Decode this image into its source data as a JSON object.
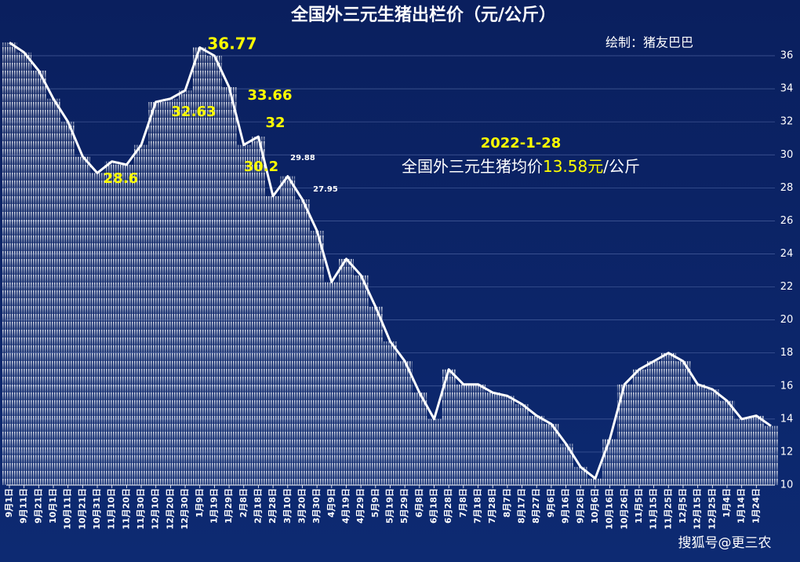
{
  "chart_data": {
    "type": "bar",
    "title": "全国外三元生猪出栏价（元/公斤）",
    "subtitle": "绘制：猪友巴巴",
    "watermark": "搜狐号@更三农",
    "categories": [
      "9月1日",
      "9月11日",
      "9月21日",
      "10月1日",
      "10月11日",
      "10月21日",
      "10月31日",
      "11月10日",
      "11月20日",
      "11月30日",
      "12月10日",
      "12月20日",
      "12月30日",
      "1月9日",
      "1月19日",
      "1月29日",
      "2月8日",
      "2月18日",
      "2月28日",
      "3月10日",
      "3月20日",
      "3月30日",
      "4月9日",
      "4月19日",
      "4月29日",
      "5月9日",
      "5月19日",
      "5月29日",
      "6月8日",
      "6月18日",
      "6月28日",
      "7月8日",
      "7月18日",
      "7月28日",
      "8月7日",
      "8月17日",
      "8月27日",
      "9月6日",
      "9月16日",
      "9月26日",
      "10月6日",
      "10月16日",
      "10月26日",
      "11月5日",
      "11月15日",
      "11月25日",
      "12月5日",
      "12月15日",
      "12月25日",
      "1月4日",
      "1月14日",
      "1月24日",
      null
    ],
    "values": [
      36.8,
      36.2,
      35.1,
      33.4,
      32.0,
      29.9,
      28.9,
      29.6,
      29.4,
      30.6,
      33.2,
      33.4,
      33.9,
      36.5,
      36.0,
      34.1,
      30.6,
      31.1,
      27.5,
      28.7,
      27.3,
      25.4,
      22.3,
      23.7,
      22.7,
      20.8,
      18.7,
      17.5,
      15.6,
      14.0,
      17.0,
      16.1,
      16.1,
      15.6,
      15.4,
      14.9,
      14.2,
      13.7,
      12.5,
      11.1,
      10.4,
      12.8,
      16.1,
      17.0,
      17.5,
      18.0,
      17.5,
      16.1,
      15.8,
      15.1,
      14.0,
      14.2,
      13.58
    ],
    "color": "#ffffff",
    "ylim": [
      10,
      37
    ],
    "yticks": [
      10,
      12,
      14,
      16,
      18,
      20,
      22,
      24,
      26,
      28,
      30,
      32,
      34,
      36
    ],
    "grid": true,
    "annotations": [
      "36.77",
      "32.63",
      "33.66",
      "32",
      "30.2",
      "28.6",
      "29.88",
      "27.95"
    ],
    "callout": {
      "date": "2022-1-28",
      "text": "全国外三元生猪均价",
      "value": "13.58元",
      "unit": "/公斤"
    }
  }
}
